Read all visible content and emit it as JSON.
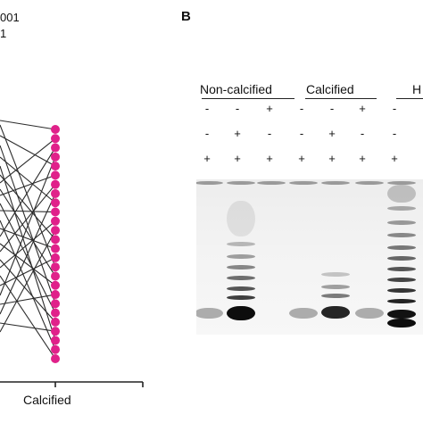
{
  "figure": {
    "panel_a": {
      "stat_lines": [
        "001",
        "1"
      ],
      "x_category": "Calcified",
      "point_color": "#e0218a",
      "line_color": "#2b2b2b"
    },
    "panel_b": {
      "label": "B",
      "groups": [
        "Non-calcified",
        "Calcified",
        "H"
      ],
      "sign_rows": [
        [
          "-",
          "-",
          "+",
          "-",
          "-",
          "+",
          "-"
        ],
        [
          "-",
          "+",
          "-",
          "-",
          "+",
          "-",
          "-"
        ],
        [
          "+",
          "+",
          "+",
          "+",
          "+",
          "+",
          "+"
        ]
      ],
      "gel_lane_intensity": [
        "faint",
        "strong",
        "none",
        "faint",
        "medium",
        "faint",
        "ladder"
      ]
    }
  },
  "chart_data": {
    "type": "scatter",
    "title": "",
    "xlabel": "",
    "ylabel": "",
    "categories": [
      "Calcified"
    ],
    "n_pairs": 26,
    "note_values": "y-axis ticks are cropped; calcified-group points listed top to bottom in relative order only",
    "calcified_values_rank": [
      26,
      25,
      24,
      23,
      22,
      21,
      20,
      19,
      18,
      17,
      16,
      15,
      14,
      13,
      12,
      11,
      10,
      9,
      8,
      7,
      6,
      5,
      4,
      3,
      2,
      1
    ]
  }
}
